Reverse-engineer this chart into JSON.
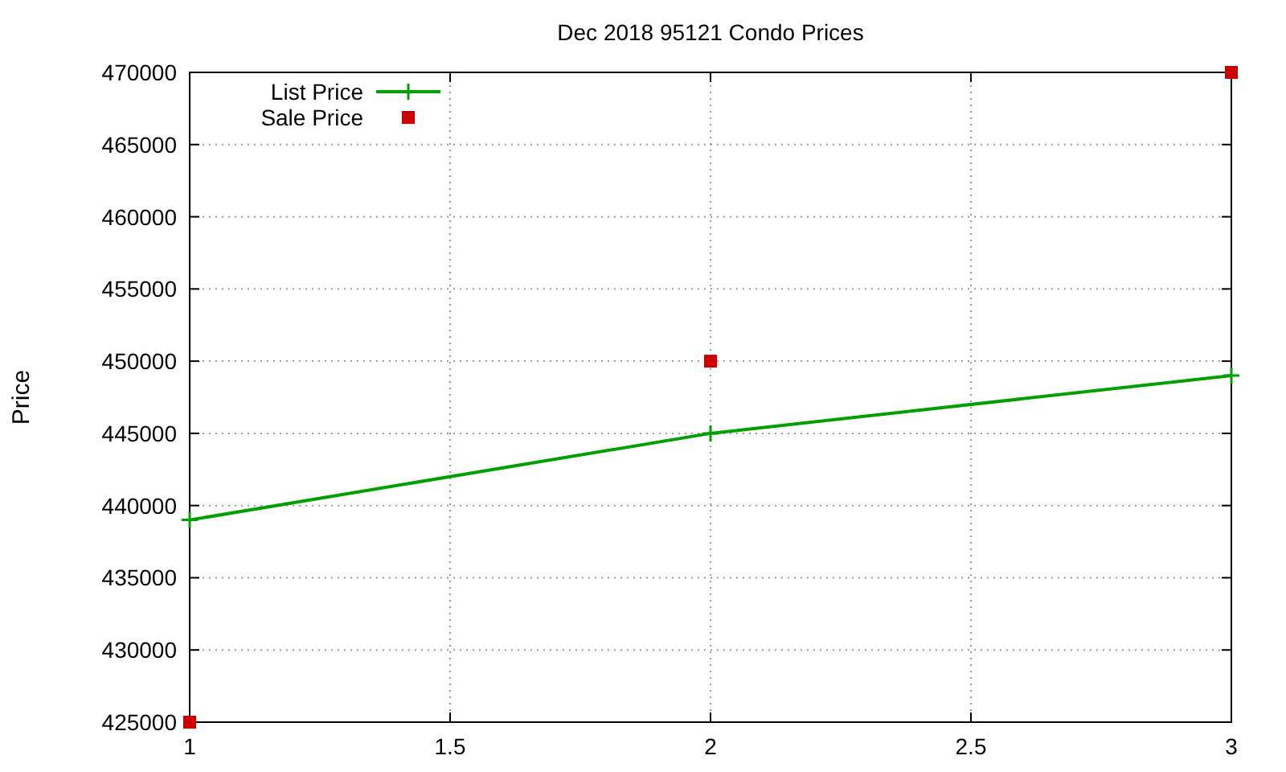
{
  "chart_data": {
    "type": "line",
    "title": "Dec 2018 95121 Condo Prices",
    "ylabel": "Price",
    "x": [
      1,
      2,
      3
    ],
    "series": [
      {
        "name": "List Price",
        "color": "#00a000",
        "values": [
          439000,
          445000,
          449000
        ],
        "marker": "cross"
      },
      {
        "name": "Sale Price",
        "type": "scatter",
        "color": "#cc0000",
        "values": [
          425000,
          450000,
          470000
        ],
        "marker": "square"
      }
    ],
    "xlim": [
      1,
      3
    ],
    "xticks": [
      1,
      1.5,
      2,
      2.5,
      3
    ],
    "ylim": [
      425000,
      470000
    ],
    "yticks": [
      425000,
      430000,
      435000,
      440000,
      445000,
      450000,
      455000,
      460000,
      465000,
      470000
    ],
    "grid": true,
    "legend": "top left"
  }
}
